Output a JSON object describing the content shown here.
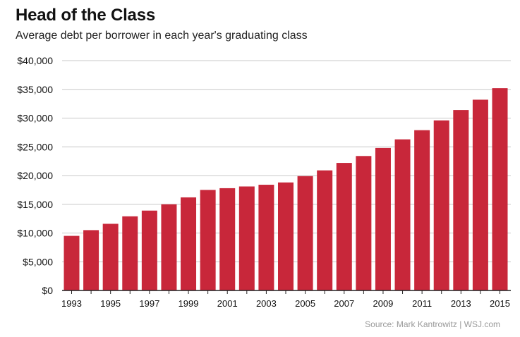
{
  "header": {
    "title": "Head of the Class",
    "subtitle": "Average debt per borrower in each year's graduating class"
  },
  "footer": {
    "source": "Source: Mark Kantrowitz  |  WSJ.com"
  },
  "colors": {
    "bar": "#c8273a",
    "grid": "#c8c8c8",
    "axis": "#222222"
  },
  "chart_data": {
    "type": "bar",
    "title": "Head of the Class",
    "subtitle": "Average debt per borrower in each year's graduating class",
    "xlabel": "",
    "ylabel": "",
    "ylim": [
      0,
      40000
    ],
    "grid": true,
    "categories": [
      "1993",
      "1994",
      "1995",
      "1996",
      "1997",
      "1998",
      "1999",
      "2000",
      "2001",
      "2002",
      "2003",
      "2004",
      "2005",
      "2006",
      "2007",
      "2008",
      "2009",
      "2010",
      "2011",
      "2012",
      "2013",
      "2014",
      "2015"
    ],
    "values": [
      9500,
      10500,
      11600,
      12900,
      13900,
      15000,
      16200,
      17500,
      17800,
      18100,
      18400,
      18800,
      19900,
      20900,
      22200,
      23400,
      24800,
      26300,
      27900,
      29600,
      31400,
      33200,
      35200
    ],
    "yticks": [
      "$0",
      "$5,000",
      "$10,000",
      "$15,000",
      "$20,000",
      "$25,000",
      "$30,000",
      "$35,000",
      "$40,000"
    ],
    "ytick_values": [
      0,
      5000,
      10000,
      15000,
      20000,
      25000,
      30000,
      35000,
      40000
    ],
    "xtick_labels": [
      "1993",
      "1995",
      "1997",
      "1999",
      "2001",
      "2003",
      "2005",
      "2007",
      "2009",
      "2011",
      "2013",
      "2015"
    ]
  }
}
